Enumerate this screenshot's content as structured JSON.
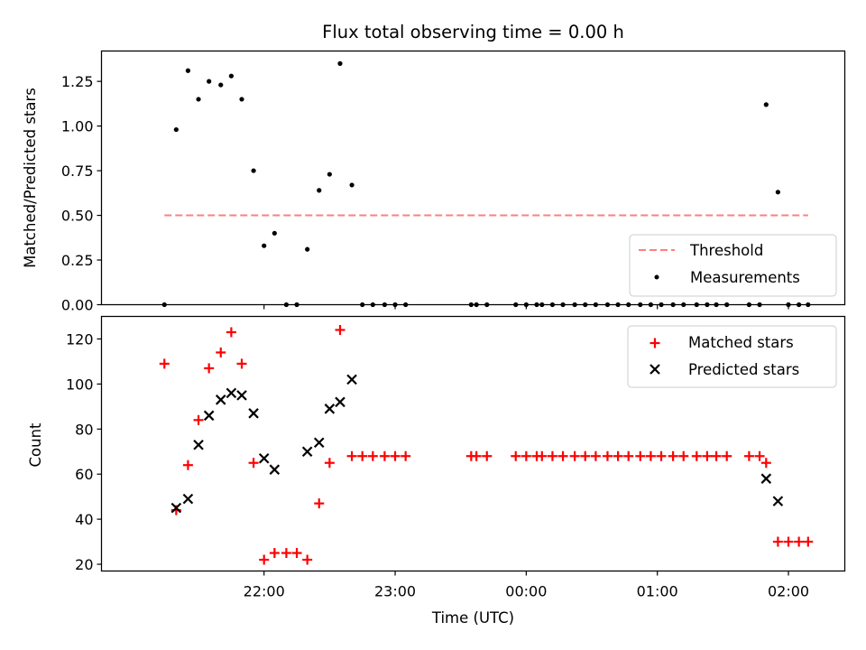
{
  "figure": {
    "title": "Flux total observing time = 0.00 h",
    "xlabel": "Time (UTC)"
  },
  "colors": {
    "measurements": "#000000",
    "threshold": "#ff7f7f",
    "matched": "#ff0000",
    "predicted": "#000000"
  },
  "chart_data": [
    {
      "type": "scatter",
      "title": "Flux total observing time = 0.00 h",
      "ylabel": "Matched/Predicted stars",
      "xlabel": "",
      "ylim": [
        0,
        1.42
      ],
      "yticks": [
        0,
        0.25,
        0.5,
        0.75,
        1.0,
        1.25
      ],
      "ytick_labels": [
        "0.00",
        "0.25",
        "0.50",
        "0.75",
        "1.00",
        "1.25"
      ],
      "x_unit": "hours after 21:00 UTC",
      "xlim": [
        20.76,
        26.43
      ],
      "legend_position": "lower right",
      "grid": false,
      "threshold": {
        "name": "Threshold",
        "value": 0.5,
        "x_range": [
          21.24,
          26.15
        ],
        "style": "dashed"
      },
      "series": [
        {
          "name": "Measurements",
          "marker": "dot",
          "points": [
            [
              21.24,
              0.0
            ],
            [
              21.33,
              0.98
            ],
            [
              21.42,
              1.31
            ],
            [
              21.5,
              1.15
            ],
            [
              21.58,
              1.25
            ],
            [
              21.67,
              1.23
            ],
            [
              21.75,
              1.28
            ],
            [
              21.83,
              1.15
            ],
            [
              21.92,
              0.75
            ],
            [
              22.0,
              0.33
            ],
            [
              22.08,
              0.4
            ],
            [
              22.17,
              0.0
            ],
            [
              22.25,
              0.0
            ],
            [
              22.33,
              0.31
            ],
            [
              22.42,
              0.64
            ],
            [
              22.5,
              0.73
            ],
            [
              22.58,
              1.35
            ],
            [
              22.67,
              0.67
            ],
            [
              22.75,
              0.0
            ],
            [
              22.83,
              0.0
            ],
            [
              22.92,
              0.0
            ],
            [
              23.0,
              0.0
            ],
            [
              23.08,
              0.0
            ],
            [
              23.58,
              0.0
            ],
            [
              23.62,
              0.0
            ],
            [
              23.7,
              0.0
            ],
            [
              23.92,
              0.0
            ],
            [
              24.0,
              0.0
            ],
            [
              24.08,
              0.0
            ],
            [
              24.12,
              0.0
            ],
            [
              24.2,
              0.0
            ],
            [
              24.28,
              0.0
            ],
            [
              24.37,
              0.0
            ],
            [
              24.45,
              0.0
            ],
            [
              24.53,
              0.0
            ],
            [
              24.62,
              0.0
            ],
            [
              24.7,
              0.0
            ],
            [
              24.78,
              0.0
            ],
            [
              24.87,
              0.0
            ],
            [
              24.95,
              0.0
            ],
            [
              25.03,
              0.0
            ],
            [
              25.12,
              0.0
            ],
            [
              25.2,
              0.0
            ],
            [
              25.3,
              0.0
            ],
            [
              25.38,
              0.0
            ],
            [
              25.45,
              0.0
            ],
            [
              25.53,
              0.0
            ],
            [
              25.7,
              0.0
            ],
            [
              25.78,
              0.0
            ],
            [
              25.83,
              1.12
            ],
            [
              25.92,
              0.63
            ],
            [
              26.0,
              0.0
            ],
            [
              26.08,
              0.0
            ],
            [
              26.15,
              0.0
            ]
          ]
        }
      ]
    },
    {
      "type": "scatter",
      "ylabel": "Count",
      "xlabel": "Time (UTC)",
      "ylim": [
        17,
        130
      ],
      "yticks": [
        20,
        40,
        60,
        80,
        100,
        120
      ],
      "ytick_labels": [
        "20",
        "40",
        "60",
        "80",
        "100",
        "120"
      ],
      "x_unit": "hours after 21:00 UTC",
      "xlim": [
        20.76,
        26.43
      ],
      "xticks": [
        22,
        23,
        24,
        25,
        26
      ],
      "xtick_labels": [
        "22:00",
        "23:00",
        "00:00",
        "01:00",
        "02:00"
      ],
      "legend_position": "upper right",
      "grid": false,
      "series": [
        {
          "name": "Matched stars",
          "marker": "plus",
          "points": [
            [
              21.24,
              109
            ],
            [
              21.33,
              44
            ],
            [
              21.42,
              64
            ],
            [
              21.5,
              84
            ],
            [
              21.58,
              107
            ],
            [
              21.67,
              114
            ],
            [
              21.75,
              123
            ],
            [
              21.83,
              109
            ],
            [
              21.92,
              65
            ],
            [
              22.0,
              22
            ],
            [
              22.08,
              25
            ],
            [
              22.17,
              25
            ],
            [
              22.25,
              25
            ],
            [
              22.33,
              22
            ],
            [
              22.42,
              47
            ],
            [
              22.5,
              65
            ],
            [
              22.58,
              124
            ],
            [
              22.67,
              68
            ],
            [
              22.75,
              68
            ],
            [
              22.83,
              68
            ],
            [
              22.92,
              68
            ],
            [
              23.0,
              68
            ],
            [
              23.08,
              68
            ],
            [
              23.58,
              68
            ],
            [
              23.62,
              68
            ],
            [
              23.7,
              68
            ],
            [
              23.92,
              68
            ],
            [
              24.0,
              68
            ],
            [
              24.08,
              68
            ],
            [
              24.12,
              68
            ],
            [
              24.2,
              68
            ],
            [
              24.28,
              68
            ],
            [
              24.37,
              68
            ],
            [
              24.45,
              68
            ],
            [
              24.53,
              68
            ],
            [
              24.62,
              68
            ],
            [
              24.7,
              68
            ],
            [
              24.78,
              68
            ],
            [
              24.87,
              68
            ],
            [
              24.95,
              68
            ],
            [
              25.03,
              68
            ],
            [
              25.12,
              68
            ],
            [
              25.2,
              68
            ],
            [
              25.3,
              68
            ],
            [
              25.38,
              68
            ],
            [
              25.45,
              68
            ],
            [
              25.53,
              68
            ],
            [
              25.7,
              68
            ],
            [
              25.78,
              68
            ],
            [
              25.83,
              65
            ],
            [
              25.92,
              30
            ],
            [
              26.0,
              30
            ],
            [
              26.08,
              30
            ],
            [
              26.15,
              30
            ]
          ]
        },
        {
          "name": "Predicted stars",
          "marker": "x",
          "points": [
            [
              21.33,
              45
            ],
            [
              21.42,
              49
            ],
            [
              21.5,
              73
            ],
            [
              21.58,
              86
            ],
            [
              21.67,
              93
            ],
            [
              21.75,
              96
            ],
            [
              21.83,
              95
            ],
            [
              21.92,
              87
            ],
            [
              22.0,
              67
            ],
            [
              22.08,
              62
            ],
            [
              22.33,
              70
            ],
            [
              22.42,
              74
            ],
            [
              22.5,
              89
            ],
            [
              22.58,
              92
            ],
            [
              22.67,
              102
            ],
            [
              25.83,
              58
            ],
            [
              25.92,
              48
            ]
          ]
        }
      ]
    }
  ]
}
